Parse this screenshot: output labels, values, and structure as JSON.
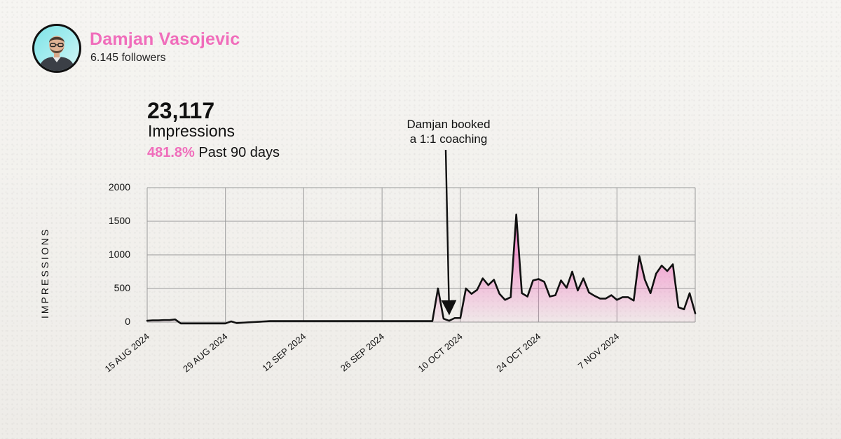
{
  "profile": {
    "name": "Damjan Vasojevic",
    "followers": "6.145 followers"
  },
  "stats": {
    "value": "23,117",
    "label": "Impressions",
    "growth_pct": "481.8%",
    "growth_period": "Past 90 days"
  },
  "annotation": {
    "line1": "Damjan booked",
    "line2": "a 1:1 coaching",
    "target_date_offset_days": 54
  },
  "colors": {
    "accent": "#f06dbb",
    "line": "#111111",
    "area_top": "#f26fbf",
    "grid": "#9a9a9a"
  },
  "chart_data": {
    "type": "area",
    "title": "",
    "xlabel": "",
    "ylabel": "IMPRESSIONS",
    "ylim": [
      0,
      2000
    ],
    "yticks": [
      0,
      500,
      1000,
      1500,
      2000
    ],
    "xtick_labels": [
      "15 AUG 2024",
      "29 AUG 2024",
      "12 SEP 2024",
      "26 SEP 2024",
      "10 OCT 2024",
      "24 OCT 2024",
      "7 NOV 2024"
    ],
    "start_date": "15 AUG 2024",
    "grid": true,
    "series": [
      {
        "name": "",
        "values": [
          20,
          25,
          25,
          30,
          30,
          40,
          -20,
          -20,
          -20,
          -20,
          -20,
          -20,
          -20,
          -20,
          -20,
          10,
          -15,
          -10,
          -5,
          0,
          5,
          10,
          15,
          15,
          15,
          15,
          15,
          15,
          15,
          15,
          15,
          15,
          15,
          15,
          15,
          15,
          15,
          15,
          15,
          15,
          15,
          15,
          15,
          15,
          15,
          15,
          15,
          15,
          15,
          15,
          15,
          15,
          500,
          50,
          20,
          60,
          60,
          500,
          420,
          480,
          650,
          550,
          630,
          420,
          330,
          370,
          1600,
          430,
          380,
          620,
          640,
          600,
          380,
          400,
          620,
          510,
          750,
          470,
          650,
          440,
          390,
          350,
          350,
          400,
          330,
          370,
          370,
          320,
          980,
          630,
          430,
          720,
          840,
          760,
          860,
          220,
          190,
          430,
          130
        ]
      }
    ]
  }
}
